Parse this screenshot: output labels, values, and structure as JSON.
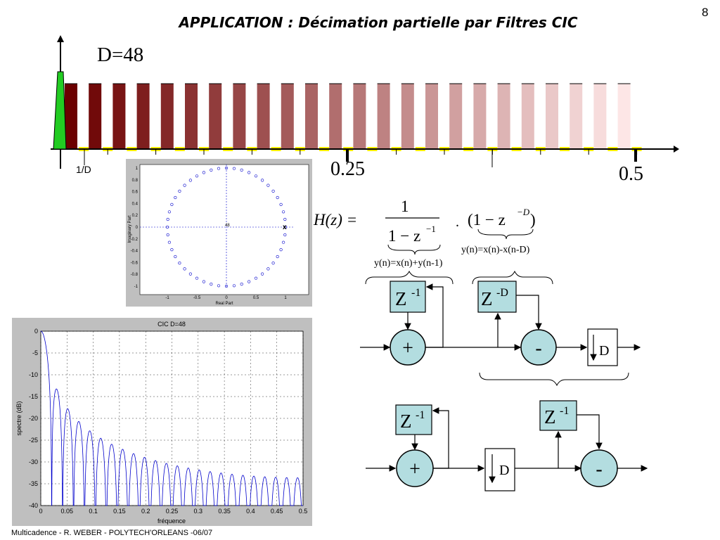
{
  "page_number": "8",
  "title": "APPLICATION : Décimation partielle par Filtres CIC",
  "top_diagram": {
    "d_label": "D=48",
    "x_tick_1d": "1/D",
    "x_tick_025": "0.25",
    "x_tick_05": "0.5",
    "colors": {
      "passband": "#22cc22",
      "markers": "#ffee00",
      "bar_dark": "#6b0000",
      "bar_light": "#fde6e6"
    }
  },
  "pole_zero_plot": {
    "ylabel": "Imaginary Part",
    "xlabel": "Real Part",
    "x_ticks": [
      "-1",
      "-0.5",
      "0",
      "0.5",
      "1"
    ],
    "y_ticks": [
      "1",
      "0.8",
      "0.6",
      "0.4",
      "0.2",
      "0",
      "-0.2",
      "-0.4",
      "-0.6",
      "-0.8",
      "-1"
    ],
    "center_label": "48",
    "num_zeros": 48
  },
  "formula": {
    "lhs": "H(z) =",
    "numerator": "1",
    "denominator": "1 − z",
    "denominator_exp": "−1",
    "dot": ".",
    "right_term": "(1 − z",
    "right_exp": "−D",
    "right_close": ")",
    "caption_left": "y(n)=x(n)+y(n-1)",
    "caption_right": "y(n)=x(n)-x(n-D)"
  },
  "block_diagram_top": {
    "integrator_delay": "Z",
    "integrator_exp": "-1",
    "adder": "+",
    "comb_delay": "Z",
    "comb_exp": "-D",
    "subtractor": "-",
    "decimator": "D"
  },
  "block_diagram_bottom": {
    "integrator_delay": "Z",
    "integrator_exp": "-1",
    "adder": "+",
    "decimator": "D",
    "comb_delay": "Z",
    "comb_exp": "-1",
    "subtractor": "-"
  },
  "chart_data": {
    "type": "line",
    "title": "CIC D=48",
    "xlabel": "fréquence",
    "ylabel": "spectre (dB)",
    "xlim": [
      0,
      0.5
    ],
    "ylim": [
      -40,
      0
    ],
    "x_ticks": [
      0,
      0.05,
      0.1,
      0.15,
      0.2,
      0.25,
      0.3,
      0.35,
      0.4,
      0.45,
      0.5
    ],
    "y_ticks": [
      0,
      -5,
      -10,
      -15,
      -20,
      -25,
      -30,
      -35,
      -40
    ],
    "grid": true,
    "series": [
      {
        "function": "20*log10(|sin(pi*f*D)/(D*sin(pi*f))|)",
        "D": 48,
        "color": "#0000cc"
      }
    ]
  },
  "footer": "Multicadence - R. WEBER - POLYTECH'ORLEANS -06/07"
}
